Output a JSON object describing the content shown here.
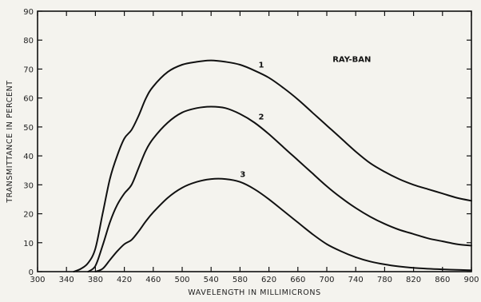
{
  "chart_data": {
    "type": "line",
    "title": "",
    "xlabel": "WAVELENGTH IN MILLIMICRONS",
    "ylabel": "TRANSMITTANCE IN PERCENT",
    "xlim": [
      300,
      900
    ],
    "ylim": [
      0,
      90
    ],
    "x_ticks": [
      300,
      340,
      380,
      420,
      460,
      500,
      540,
      580,
      620,
      660,
      700,
      740,
      780,
      820,
      860,
      900
    ],
    "y_ticks": [
      0,
      10,
      20,
      30,
      40,
      50,
      60,
      70,
      80,
      90
    ],
    "grid": false,
    "annotation": "RAY-BAN",
    "series": [
      {
        "name": "1",
        "x": [
          350,
          360,
          370,
          380,
          390,
          400,
          410,
          420,
          430,
          440,
          450,
          460,
          480,
          500,
          520,
          540,
          560,
          580,
          600,
          620,
          640,
          660,
          680,
          700,
          720,
          740,
          760,
          780,
          800,
          820,
          840,
          860,
          880,
          900
        ],
        "y": [
          0,
          1,
          3,
          8,
          20,
          32,
          40,
          46,
          49,
          54,
          60,
          64,
          69,
          71.5,
          72.5,
          73,
          72.5,
          71.5,
          69.5,
          67,
          63.5,
          59.5,
          55,
          50.5,
          46,
          41.5,
          37.5,
          34.5,
          32,
          30,
          28.5,
          27,
          25.5,
          24.5
        ]
      },
      {
        "name": "2",
        "x": [
          370,
          380,
          390,
          400,
          410,
          420,
          430,
          440,
          450,
          460,
          480,
          500,
          520,
          540,
          560,
          580,
          600,
          620,
          640,
          660,
          680,
          700,
          720,
          740,
          760,
          780,
          800,
          820,
          840,
          860,
          880,
          900
        ],
        "y": [
          0,
          2,
          9,
          17,
          23,
          27,
          30,
          36,
          42,
          46,
          51.5,
          55,
          56.5,
          57,
          56.5,
          54.5,
          51.5,
          47.5,
          43,
          38.5,
          34,
          29.5,
          25.5,
          22,
          19,
          16.5,
          14.5,
          13,
          11.5,
          10.5,
          9.5,
          9
        ]
      },
      {
        "name": "3",
        "x": [
          380,
          390,
          400,
          410,
          420,
          430,
          440,
          450,
          460,
          480,
          500,
          520,
          540,
          560,
          580,
          600,
          620,
          640,
          660,
          680,
          700,
          720,
          740,
          760,
          780,
          800,
          820,
          840,
          860,
          880,
          900
        ],
        "y": [
          0,
          1,
          4,
          7,
          9.5,
          11,
          14,
          17.5,
          20.5,
          25.5,
          29,
          31,
          32,
          32,
          31,
          28.5,
          25,
          21,
          17,
          13,
          9.5,
          7,
          5,
          3.5,
          2.5,
          1.8,
          1.3,
          1,
          0.8,
          0.6,
          0.5
        ]
      }
    ]
  }
}
